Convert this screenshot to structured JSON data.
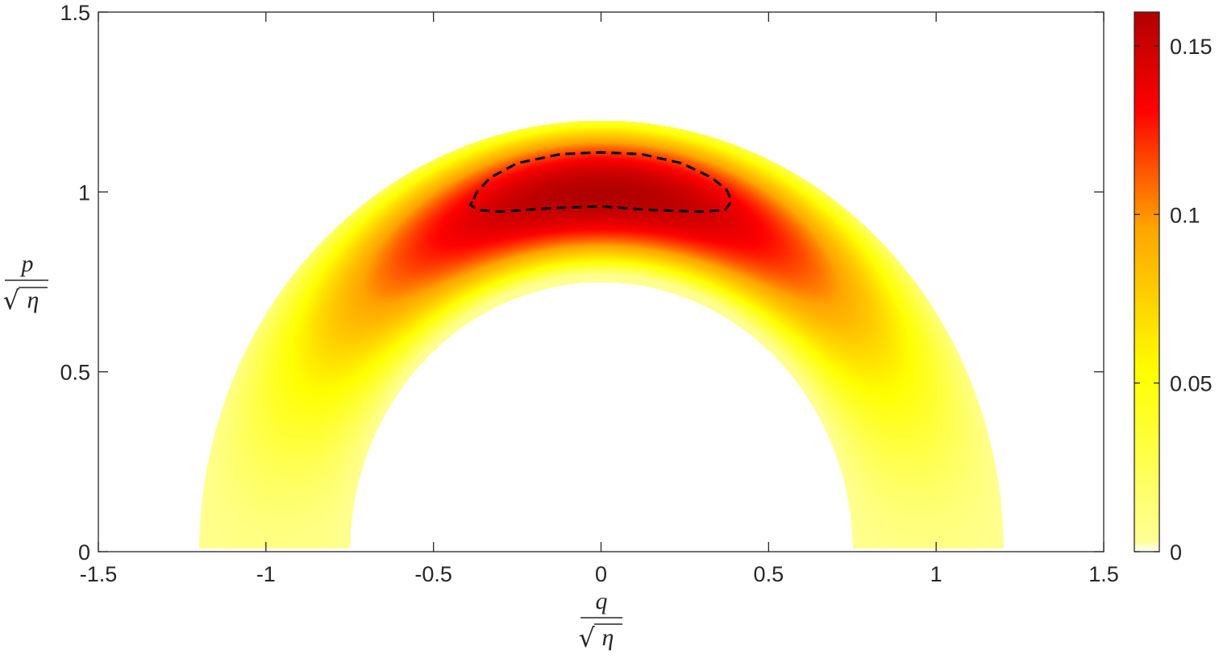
{
  "chart_data": {
    "type": "heatmap",
    "title": "",
    "x_axis": {
      "label_numerator": "q",
      "label_denominator_sqrt": "√",
      "label_denominator_var": "η",
      "range": [
        -1.5,
        1.5
      ],
      "ticks": [
        -1.5,
        -1,
        -0.5,
        0,
        0.5,
        1,
        1.5
      ],
      "tick_labels": [
        "-1.5",
        "-1",
        "-0.5",
        "0",
        "0.5",
        "1",
        "1.5"
      ]
    },
    "y_axis": {
      "label_numerator": "p",
      "label_denominator_sqrt": "√",
      "label_denominator_var": "η",
      "range": [
        0,
        1.5
      ],
      "ticks": [
        0,
        0.5,
        1,
        1.5
      ],
      "tick_labels": [
        "0",
        "0.5",
        "1",
        "1.5"
      ]
    },
    "colorbar": {
      "range": [
        0,
        0.16
      ],
      "ticks": [
        0,
        0.05,
        0.1,
        0.15
      ],
      "tick_labels": [
        "0",
        "0.05",
        "0.1",
        "0.15"
      ],
      "colormap": [
        "#ffffff",
        "#ffff96",
        "#ffff00",
        "#ffa500",
        "#ff0000",
        "#b00000"
      ]
    },
    "region": {
      "shape": "half-annulus",
      "inner_radius": 0.75,
      "outer_radius": 1.2,
      "peak_value": 0.16,
      "peak_location": [
        0,
        1.02
      ]
    },
    "contour": {
      "style": "dashed",
      "color": "#000000",
      "points": [
        [
          -0.38,
          0.98
        ],
        [
          -0.37,
          1.0
        ],
        [
          -0.33,
          1.04
        ],
        [
          -0.25,
          1.08
        ],
        [
          -0.12,
          1.105
        ],
        [
          0.0,
          1.11
        ],
        [
          0.12,
          1.105
        ],
        [
          0.24,
          1.08
        ],
        [
          0.33,
          1.04
        ],
        [
          0.375,
          1.005
        ],
        [
          0.39,
          0.975
        ],
        [
          0.37,
          0.95
        ],
        [
          0.3,
          0.945
        ],
        [
          0.15,
          0.95
        ],
        [
          0.0,
          0.96
        ],
        [
          -0.15,
          0.955
        ],
        [
          -0.3,
          0.945
        ],
        [
          -0.37,
          0.95
        ],
        [
          -0.39,
          0.965
        ]
      ]
    },
    "grid": false,
    "legend": "colorbar-right"
  }
}
